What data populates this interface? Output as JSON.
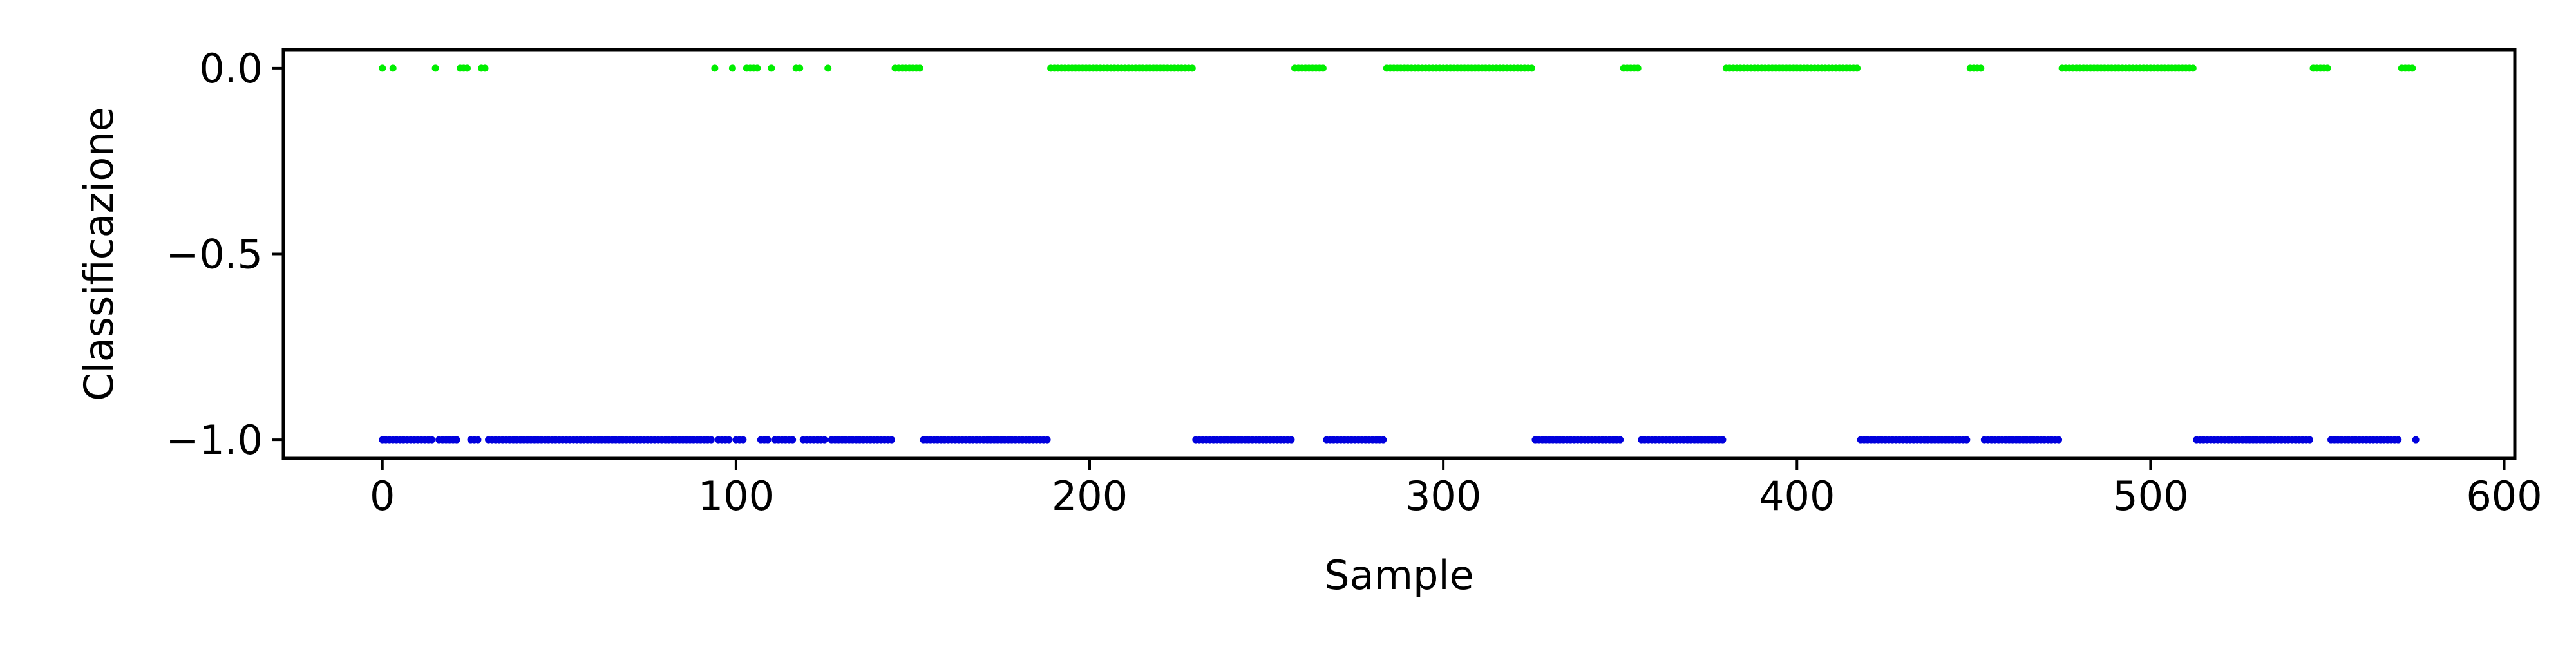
{
  "chart_data": {
    "type": "scatter",
    "title": "",
    "xlabel": "Sample",
    "ylabel": "Classificazione",
    "xlim": [
      -28,
      603
    ],
    "ylim": [
      -1.05,
      0.05
    ],
    "xticks": [
      0,
      100,
      200,
      300,
      400,
      500,
      600
    ],
    "yticks": [
      0.0,
      -0.5,
      -1.0
    ],
    "xtick_labels": [
      "0",
      "100",
      "200",
      "300",
      "400",
      "500",
      "600"
    ],
    "ytick_labels": [
      "0.0",
      "−0.5",
      "−1.0"
    ],
    "grid": false,
    "legend": null,
    "colors": {
      "class_0": "#00ee00",
      "class_minus1": "#0000dd"
    },
    "series": [
      {
        "value": 0.0,
        "color": "#00ee00",
        "x_segments": [
          [
            0,
            0
          ],
          [
            3,
            3
          ],
          [
            15,
            15
          ],
          [
            22,
            24
          ],
          [
            28,
            29
          ],
          [
            94,
            94
          ],
          [
            99,
            99
          ],
          [
            103,
            106
          ],
          [
            110,
            110
          ],
          [
            117,
            118
          ],
          [
            126,
            126
          ],
          [
            145,
            152
          ],
          [
            189,
            229
          ],
          [
            258,
            266
          ],
          [
            284,
            325
          ],
          [
            351,
            355
          ],
          [
            380,
            417
          ],
          [
            449,
            452
          ],
          [
            475,
            512
          ],
          [
            546,
            550
          ],
          [
            571,
            574
          ]
        ]
      },
      {
        "value": -1.0,
        "color": "#0000dd",
        "x_segments": [
          [
            0,
            14
          ],
          [
            16,
            21
          ],
          [
            25,
            27
          ],
          [
            30,
            93
          ],
          [
            95,
            98
          ],
          [
            100,
            102
          ],
          [
            107,
            109
          ],
          [
            111,
            116
          ],
          [
            119,
            125
          ],
          [
            127,
            144
          ],
          [
            153,
            188
          ],
          [
            230,
            257
          ],
          [
            267,
            283
          ],
          [
            326,
            350
          ],
          [
            356,
            379
          ],
          [
            418,
            448
          ],
          [
            453,
            474
          ],
          [
            513,
            545
          ],
          [
            551,
            570
          ],
          [
            575,
            575
          ]
        ]
      }
    ]
  }
}
